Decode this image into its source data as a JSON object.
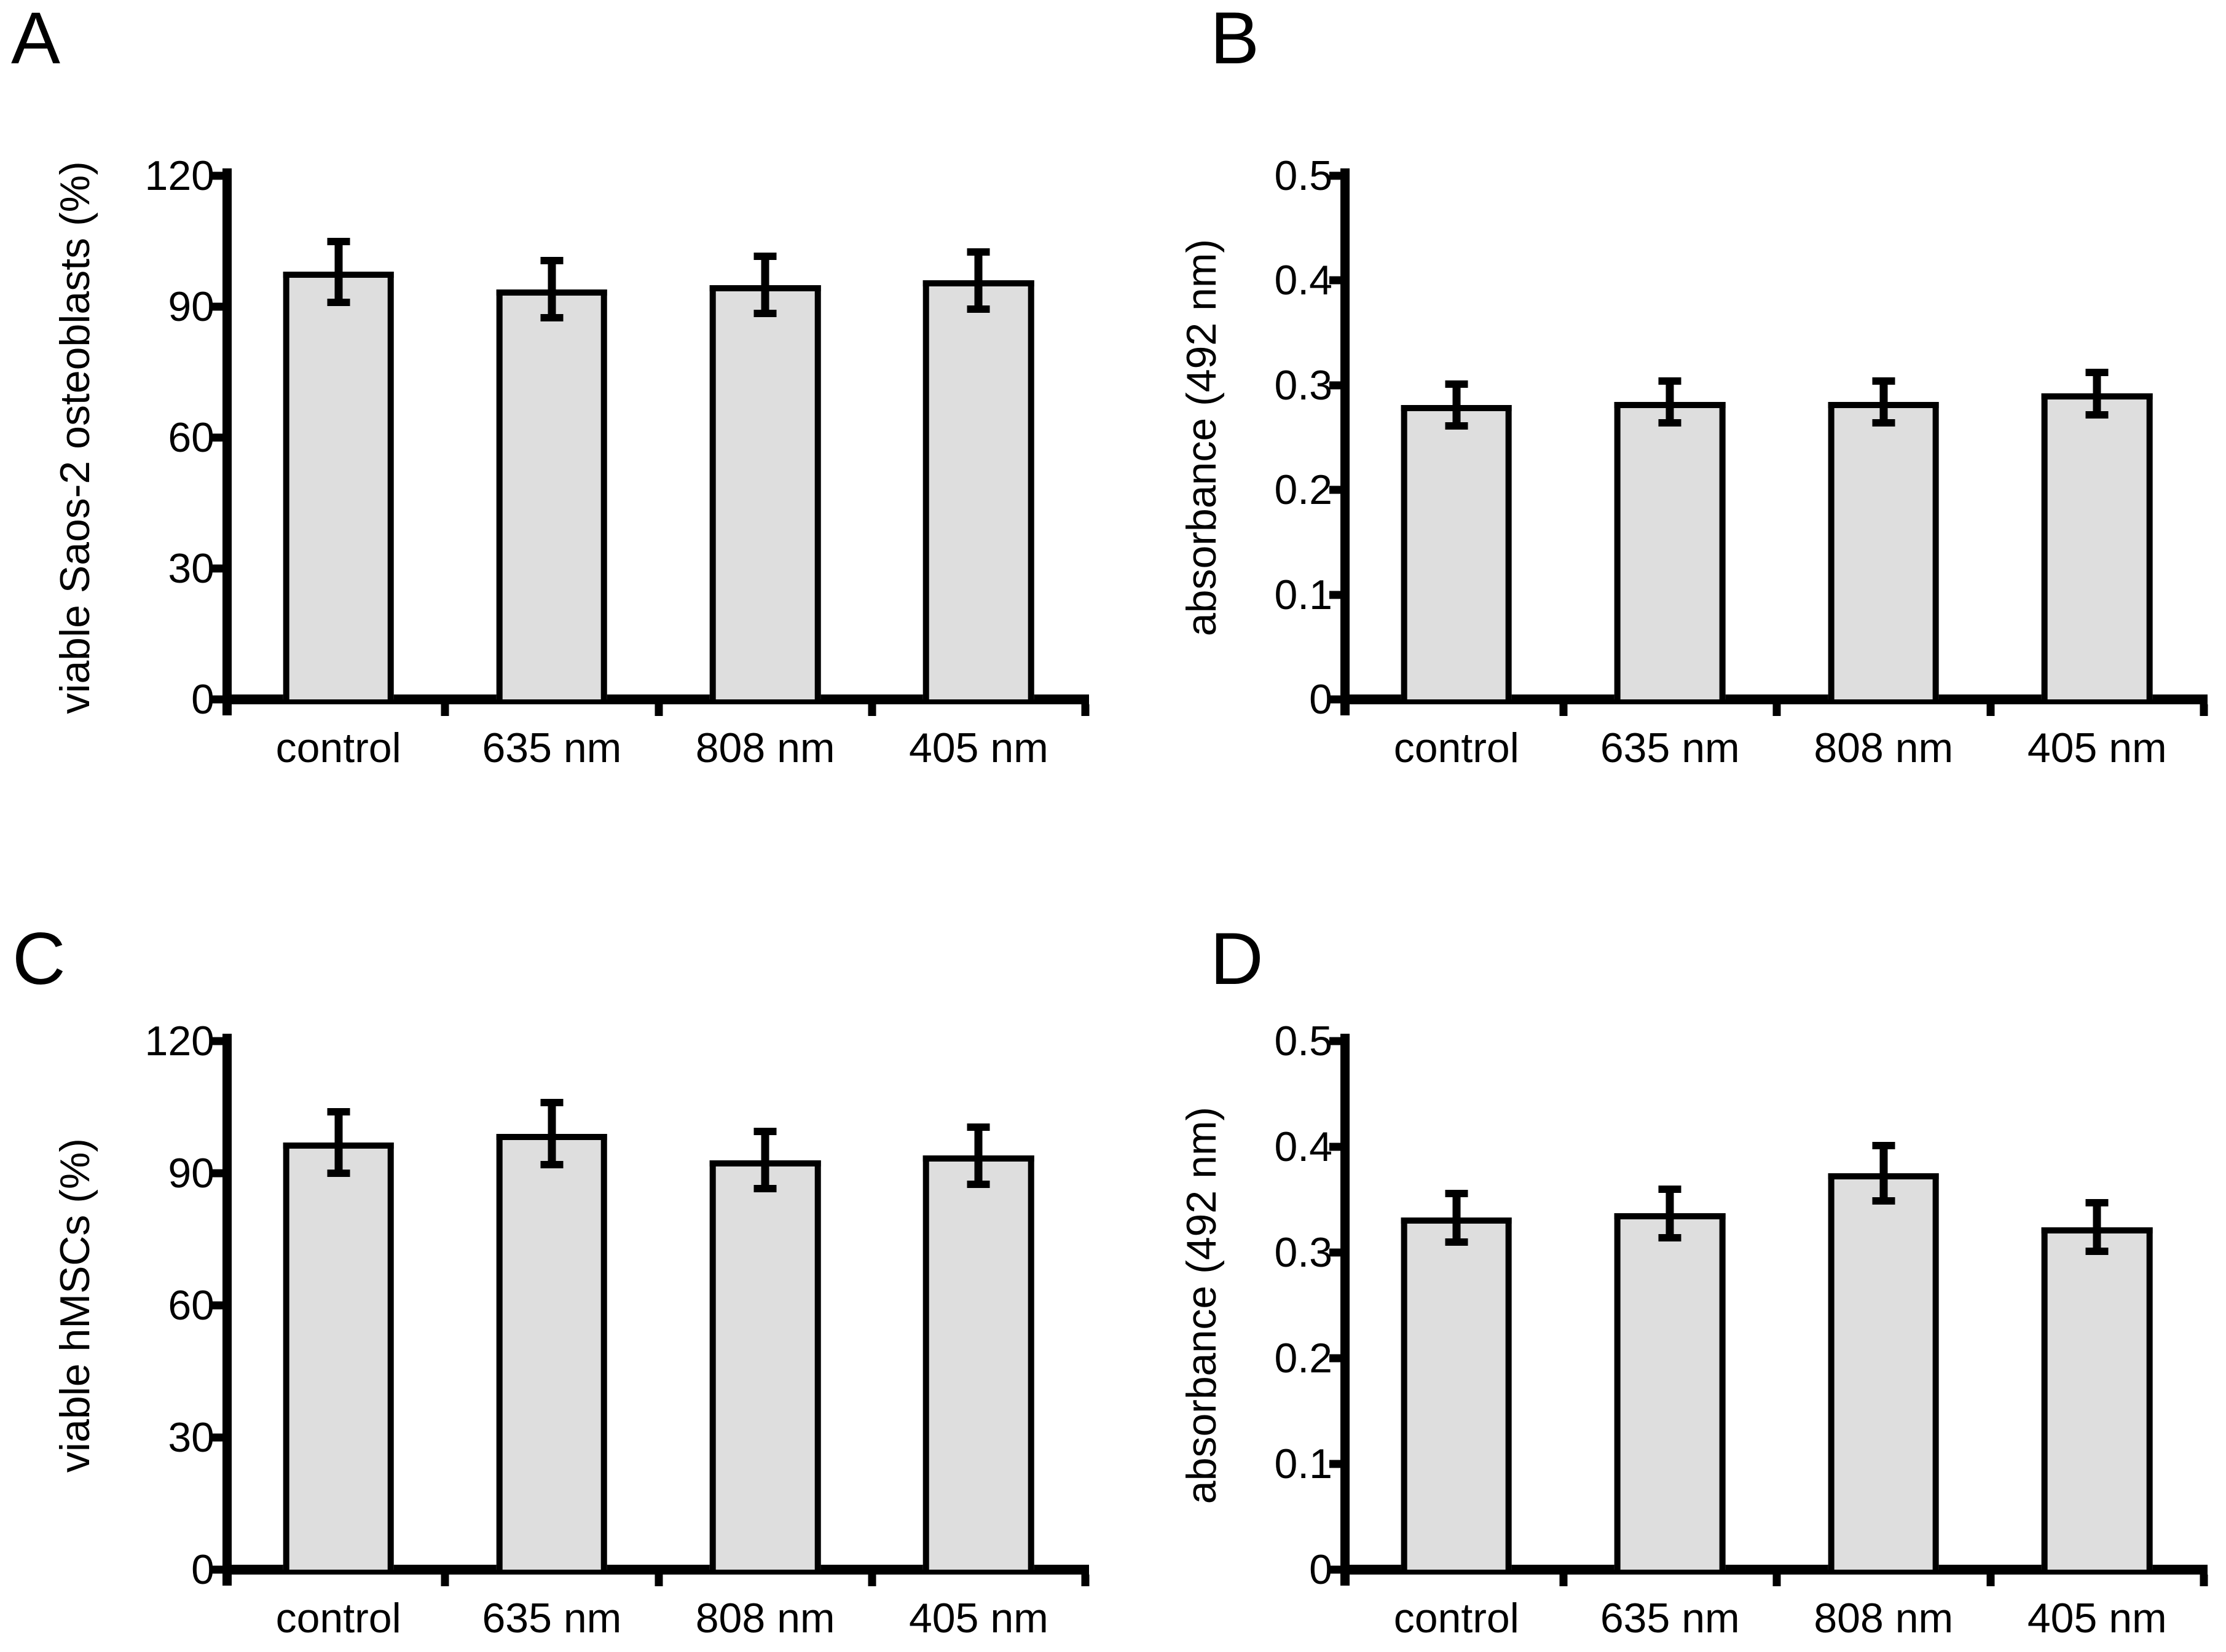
{
  "figure": {
    "background": "#ffffff",
    "bar_fill": "#dedede",
    "bar_border": "#000000",
    "axis_color": "#000000",
    "error_bar_color": "#000000"
  },
  "chart_data": [
    {
      "type": "bar",
      "panel_label": "A",
      "title": "",
      "xlabel": "",
      "ylabel": "viable Saos-2 osteoblasts (%)",
      "categories": [
        "control",
        "635 nm",
        "808 nm",
        "405 nm"
      ],
      "values": [
        98,
        94,
        95,
        96
      ],
      "errors": [
        7,
        6.5,
        6.5,
        6.5
      ],
      "ylim": [
        0,
        120
      ],
      "yticks": [
        {
          "v": 0,
          "label": "0"
        },
        {
          "v": 30,
          "label": "30"
        },
        {
          "v": 60,
          "label": "60"
        },
        {
          "v": 90,
          "label": "90"
        },
        {
          "v": 120,
          "label": "120"
        }
      ],
      "grid": false,
      "legend": "none"
    },
    {
      "type": "bar",
      "panel_label": "B",
      "title": "",
      "xlabel": "",
      "ylabel": "absorbance (492 nm)",
      "categories": [
        "control",
        "635 nm",
        "808 nm",
        "405 nm"
      ],
      "values": [
        0.281,
        0.284,
        0.284,
        0.292
      ],
      "errors": [
        0.02,
        0.02,
        0.02,
        0.02
      ],
      "ylim": [
        0,
        0.5
      ],
      "yticks": [
        {
          "v": 0,
          "label": "0"
        },
        {
          "v": 0.1,
          "label": "0.1"
        },
        {
          "v": 0.2,
          "label": "0.2"
        },
        {
          "v": 0.3,
          "label": "0.3"
        },
        {
          "v": 0.4,
          "label": "0.4"
        },
        {
          "v": 0.5,
          "label": "0.5"
        }
      ],
      "grid": false,
      "legend": "none"
    },
    {
      "type": "bar",
      "panel_label": "C",
      "title": "",
      "xlabel": "",
      "ylabel": "viable hMSCs (%)",
      "categories": [
        "control",
        "635 nm",
        "808 nm",
        "405 nm"
      ],
      "values": [
        97,
        99,
        93,
        94
      ],
      "errors": [
        7,
        7,
        6.5,
        6.5
      ],
      "ylim": [
        0,
        120
      ],
      "yticks": [
        {
          "v": 0,
          "label": "0"
        },
        {
          "v": 30,
          "label": "30"
        },
        {
          "v": 60,
          "label": "60"
        },
        {
          "v": 90,
          "label": "90"
        },
        {
          "v": 120,
          "label": "120"
        }
      ],
      "grid": false,
      "legend": "none"
    },
    {
      "type": "bar",
      "panel_label": "D",
      "title": "",
      "xlabel": "",
      "ylabel": "absorbance (492 nm)",
      "categories": [
        "control",
        "635 nm",
        "808 nm",
        "405 nm"
      ],
      "values": [
        0.333,
        0.337,
        0.375,
        0.324
      ],
      "errors": [
        0.023,
        0.023,
        0.026,
        0.023
      ],
      "ylim": [
        0,
        0.5
      ],
      "yticks": [
        {
          "v": 0,
          "label": "0"
        },
        {
          "v": 0.1,
          "label": "0.1"
        },
        {
          "v": 0.2,
          "label": "0.2"
        },
        {
          "v": 0.3,
          "label": "0.3"
        },
        {
          "v": 0.4,
          "label": "0.4"
        },
        {
          "v": 0.5,
          "label": "0.5"
        }
      ],
      "grid": false,
      "legend": "none"
    }
  ]
}
